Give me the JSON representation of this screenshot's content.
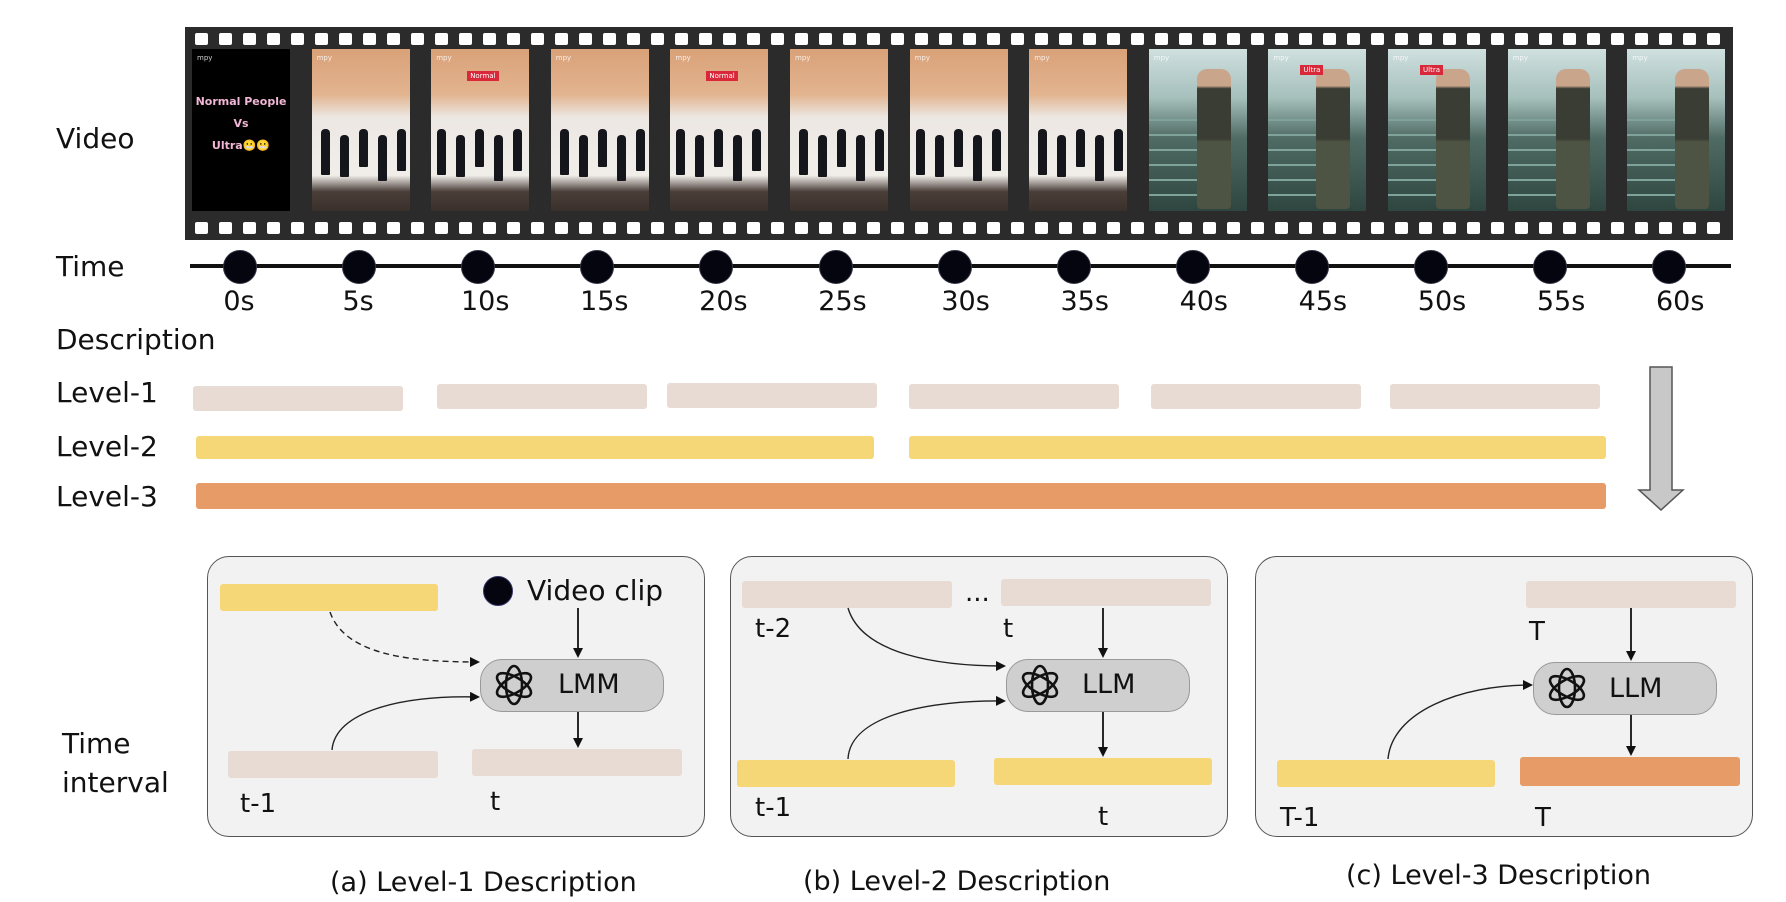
{
  "row_labels": {
    "video": "Video",
    "time": "Time",
    "description": "Description",
    "level1": "Level-1",
    "level2": "Level-2",
    "level3": "Level-3",
    "time_interval_line1": "Time",
    "time_interval_line2": "interval"
  },
  "timeline": {
    "ticks": [
      "0s",
      "5s",
      "10s",
      "15s",
      "20s",
      "25s",
      "30s",
      "35s",
      "40s",
      "45s",
      "50s",
      "55s",
      "60s"
    ]
  },
  "video_frames": {
    "title_frame_text": [
      "Normal People",
      "Vs",
      "Ultra😬😬"
    ],
    "tag_normal": "Normal",
    "tag_ultra": "Ultra",
    "watermark": "mpy"
  },
  "panels": {
    "a": {
      "caption": "(a) Level-1 Description",
      "legend": "Video clip",
      "model": "LMM",
      "label_prev": "t-1",
      "label_cur": "t"
    },
    "b": {
      "caption": "(b) Level-2 Description",
      "model": "LLM",
      "ellipsis": "...",
      "label_t2": "t-2",
      "label_t_top": "t",
      "label_prev": "t-1",
      "label_cur": "t"
    },
    "c": {
      "caption": "(c) Level-3 Description",
      "model": "LLM",
      "label_top": "T",
      "label_prev": "T-1",
      "label_cur": "T"
    }
  },
  "colors": {
    "level1": "#e7dbd3",
    "level2": "#f5d778",
    "level3": "#e79c68",
    "film": "#2b2b2b"
  }
}
